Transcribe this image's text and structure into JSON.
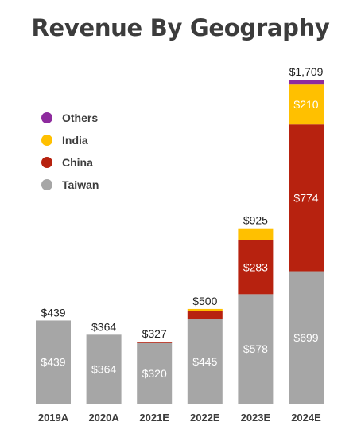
{
  "chart_data": {
    "type": "bar",
    "stacked": true,
    "title": "Revenue By Geography",
    "categories": [
      "2019A",
      "2020A",
      "2021E",
      "2022E",
      "2023E",
      "2024E"
    ],
    "series": [
      {
        "name": "Taiwan",
        "color": "#a6a6a6",
        "values": [
          439,
          364,
          320,
          445,
          578,
          699
        ],
        "labels": [
          "$439",
          "$364",
          "$320",
          "$445",
          "$578",
          "$699"
        ]
      },
      {
        "name": "China",
        "color": "#b7220f",
        "values": [
          0,
          0,
          7,
          45,
          283,
          774
        ],
        "labels": [
          "",
          "",
          "",
          "",
          "$283",
          "$774"
        ]
      },
      {
        "name": "India",
        "color": "#ffc000",
        "values": [
          0,
          0,
          0,
          10,
          64,
          210
        ],
        "labels": [
          "",
          "",
          "",
          "",
          "",
          "$210"
        ]
      },
      {
        "name": "Others",
        "color": "#8e2b9e",
        "values": [
          0,
          0,
          0,
          0,
          0,
          26
        ],
        "labels": [
          "",
          "",
          "",
          "",
          "",
          ""
        ]
      }
    ],
    "totals": [
      439,
      364,
      327,
      500,
      925,
      1709
    ],
    "total_labels": [
      "$439",
      "$364",
      "$327",
      "$500",
      "$925",
      "$1,709"
    ],
    "legend_order": [
      "Others",
      "India",
      "China",
      "Taiwan"
    ],
    "legend_position": "left",
    "grid": false,
    "ylim": [
      0,
      1709
    ]
  }
}
